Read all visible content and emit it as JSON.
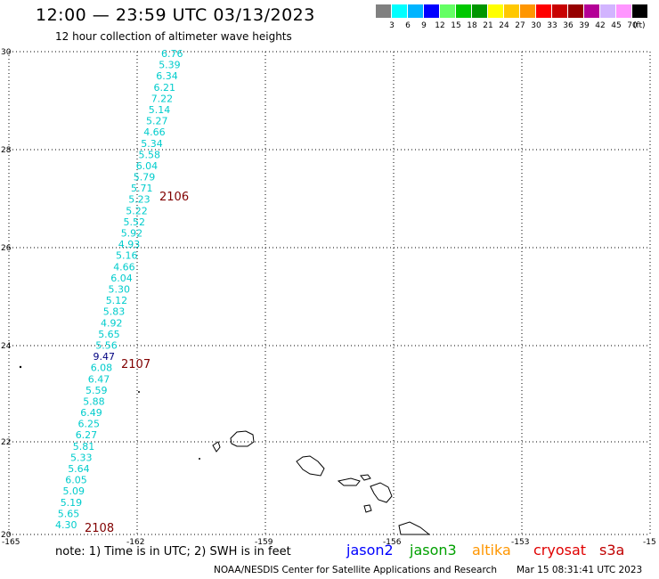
{
  "header": {
    "title": "12:00 — 23:59 UTC 03/13/2023",
    "subtitle": "12 hour collection of altimeter wave heights"
  },
  "colorbar": {
    "colors": [
      "#808080",
      "#00ffff",
      "#00b4ff",
      "#0000ff",
      "#64ff64",
      "#00c800",
      "#009600",
      "#ffff00",
      "#ffc800",
      "#ff9600",
      "#ff0000",
      "#c80000",
      "#960000",
      "#b40096",
      "#d2b4ff",
      "#ff96ff",
      "#000000"
    ],
    "labels": [
      "3",
      "6",
      "9",
      "12",
      "15",
      "18",
      "21",
      "24",
      "27",
      "30",
      "33",
      "36",
      "39",
      "42",
      "45",
      "70"
    ],
    "units": "(ft)"
  },
  "map": {
    "y_ticks": [
      "30",
      "28",
      "26",
      "24",
      "22",
      "20"
    ],
    "x_ticks": [
      "-165",
      "-162",
      "-159",
      "-156",
      "-153",
      "-15"
    ],
    "track_color": "#00cccc",
    "highlight_color": "#000080",
    "pass_color": "#800000",
    "track_values": [
      "6.76",
      "5.39",
      "6.34",
      "6.21",
      "7.22",
      "5.14",
      "5.27",
      "4.66",
      "5.34",
      "5.58",
      "6.04",
      "5.79",
      "5.71",
      "5.23",
      "5.22",
      "5.52",
      "5.92",
      "4.93",
      "5.16",
      "4.66",
      "6.04",
      "5.30",
      "5.12",
      "5.83",
      "4.92",
      "5.65",
      "5.56",
      "9.47",
      "6.08",
      "6.47",
      "5.59",
      "5.88",
      "6.49",
      "6.25",
      "6.27",
      "5.81",
      "5.33",
      "5.64",
      "6.05",
      "5.09",
      "5.19",
      "5.65",
      "4.30"
    ],
    "highlight_index": 27,
    "pass_labels": [
      "2106",
      "2107",
      "2108"
    ]
  },
  "footer": {
    "note": "note:  1) Time is in UTC;  2) SWH is in feet",
    "satellites": [
      {
        "name": "jason2",
        "color": "#0000ff"
      },
      {
        "name": "jason3",
        "color": "#00a000"
      },
      {
        "name": "altika",
        "color": "#ff9600"
      },
      {
        "name": "cryosat",
        "color": "#e00000"
      },
      {
        "name": "s3a",
        "color": "#c00000"
      }
    ],
    "credit": "NOAA/NESDIS Center for Satellite Applications and Research",
    "timestamp": "Mar 15 08:31:41 UTC 2023"
  }
}
